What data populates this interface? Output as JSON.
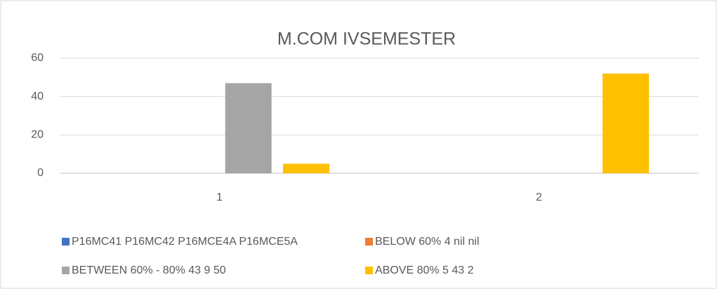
{
  "chart_data": {
    "type": "bar",
    "title": "M.COM IVSEMESTER",
    "categories": [
      "1",
      "2"
    ],
    "series": [
      {
        "name": "P16MC41 P16MC42 P16MCE4A P16MCE5A",
        "color": "#4472c4",
        "values": [
          0,
          0
        ]
      },
      {
        "name": "BELOW 60% 4 nil nil",
        "color": "#ed7d31",
        "values": [
          0,
          0
        ]
      },
      {
        "name": "BETWEEN 60% - 80% 43 9 50",
        "color": "#a5a5a5",
        "values": [
          47,
          0
        ]
      },
      {
        "name": "ABOVE 80% 5 43 2",
        "color": "#ffc000",
        "values": [
          5,
          52
        ]
      }
    ],
    "ylim": [
      0,
      60
    ],
    "yticks": [
      0,
      20,
      40,
      60
    ],
    "grid": true,
    "legend": "bottom"
  }
}
